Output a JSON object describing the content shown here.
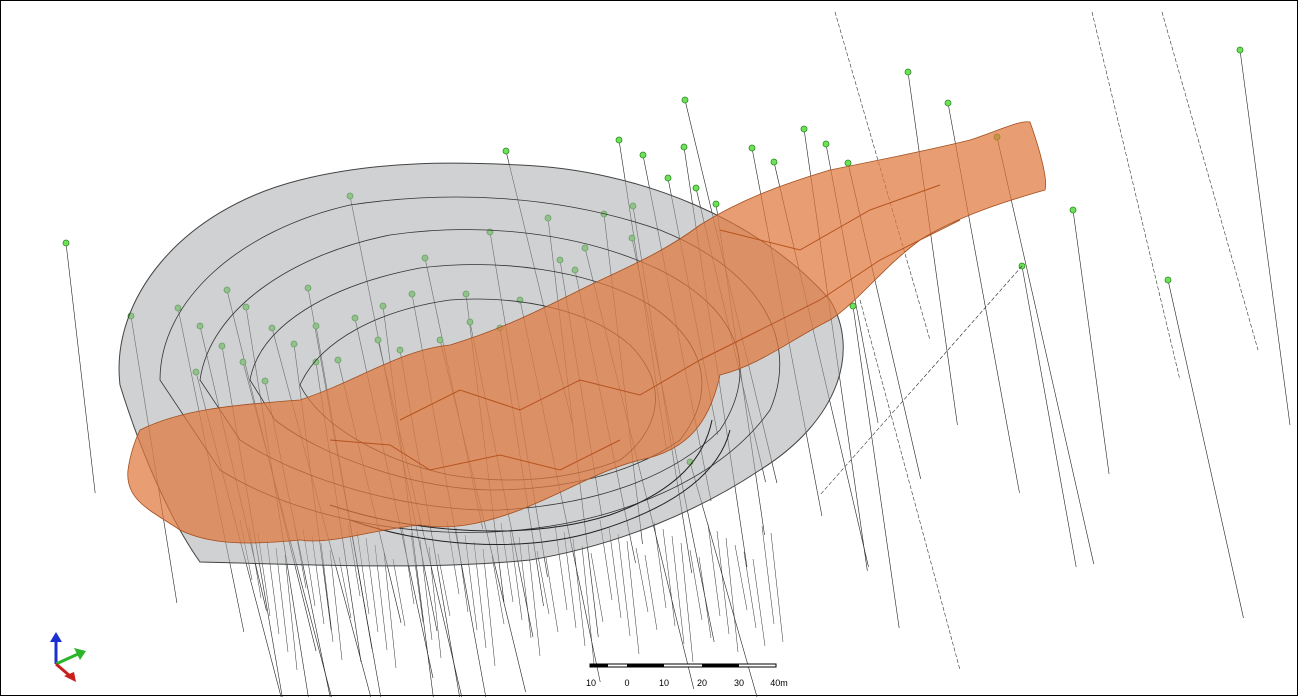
{
  "scale_bar": {
    "labels": [
      "10",
      "0",
      "10",
      "20",
      "30",
      "40m"
    ]
  }
}
